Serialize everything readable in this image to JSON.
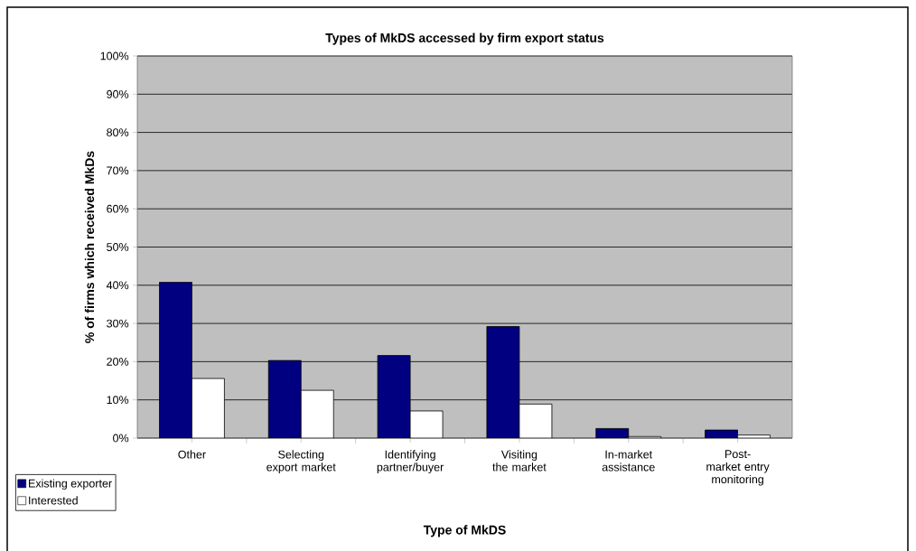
{
  "chart_data": {
    "type": "bar",
    "title": "Types of MkDS accessed by firm export status",
    "xlabel": "Type of MkDS",
    "ylabel": "% of firms which received MkDs",
    "categories": [
      "Other",
      "Selecting export market",
      "Identifying partner/buyer",
      "Visiting the market",
      "In-market assistance",
      "Post-market entry monitoring"
    ],
    "series": [
      {
        "name": "Existing exporter",
        "color": "#000080",
        "values": [
          40.8,
          20.3,
          21.6,
          29.2,
          2.5,
          2.1
        ]
      },
      {
        "name": "Interested",
        "color": "#ffffff",
        "values": [
          15.6,
          12.5,
          7.1,
          8.9,
          0.4,
          0.8
        ]
      }
    ],
    "ylim": [
      0,
      100
    ],
    "yticks": [
      {
        "value": 0,
        "label": "0%"
      },
      {
        "value": 10,
        "label": "10%"
      },
      {
        "value": 20,
        "label": "20%"
      },
      {
        "value": 30,
        "label": "30%"
      },
      {
        "value": 40,
        "label": "40%"
      },
      {
        "value": 50,
        "label": "50%"
      },
      {
        "value": 60,
        "label": "60%"
      },
      {
        "value": 70,
        "label": "70%"
      },
      {
        "value": 80,
        "label": "80%"
      },
      {
        "value": 90,
        "label": "90%"
      },
      {
        "value": 100,
        "label": "100%"
      }
    ],
    "grid": "y",
    "legend": "bottom left"
  }
}
